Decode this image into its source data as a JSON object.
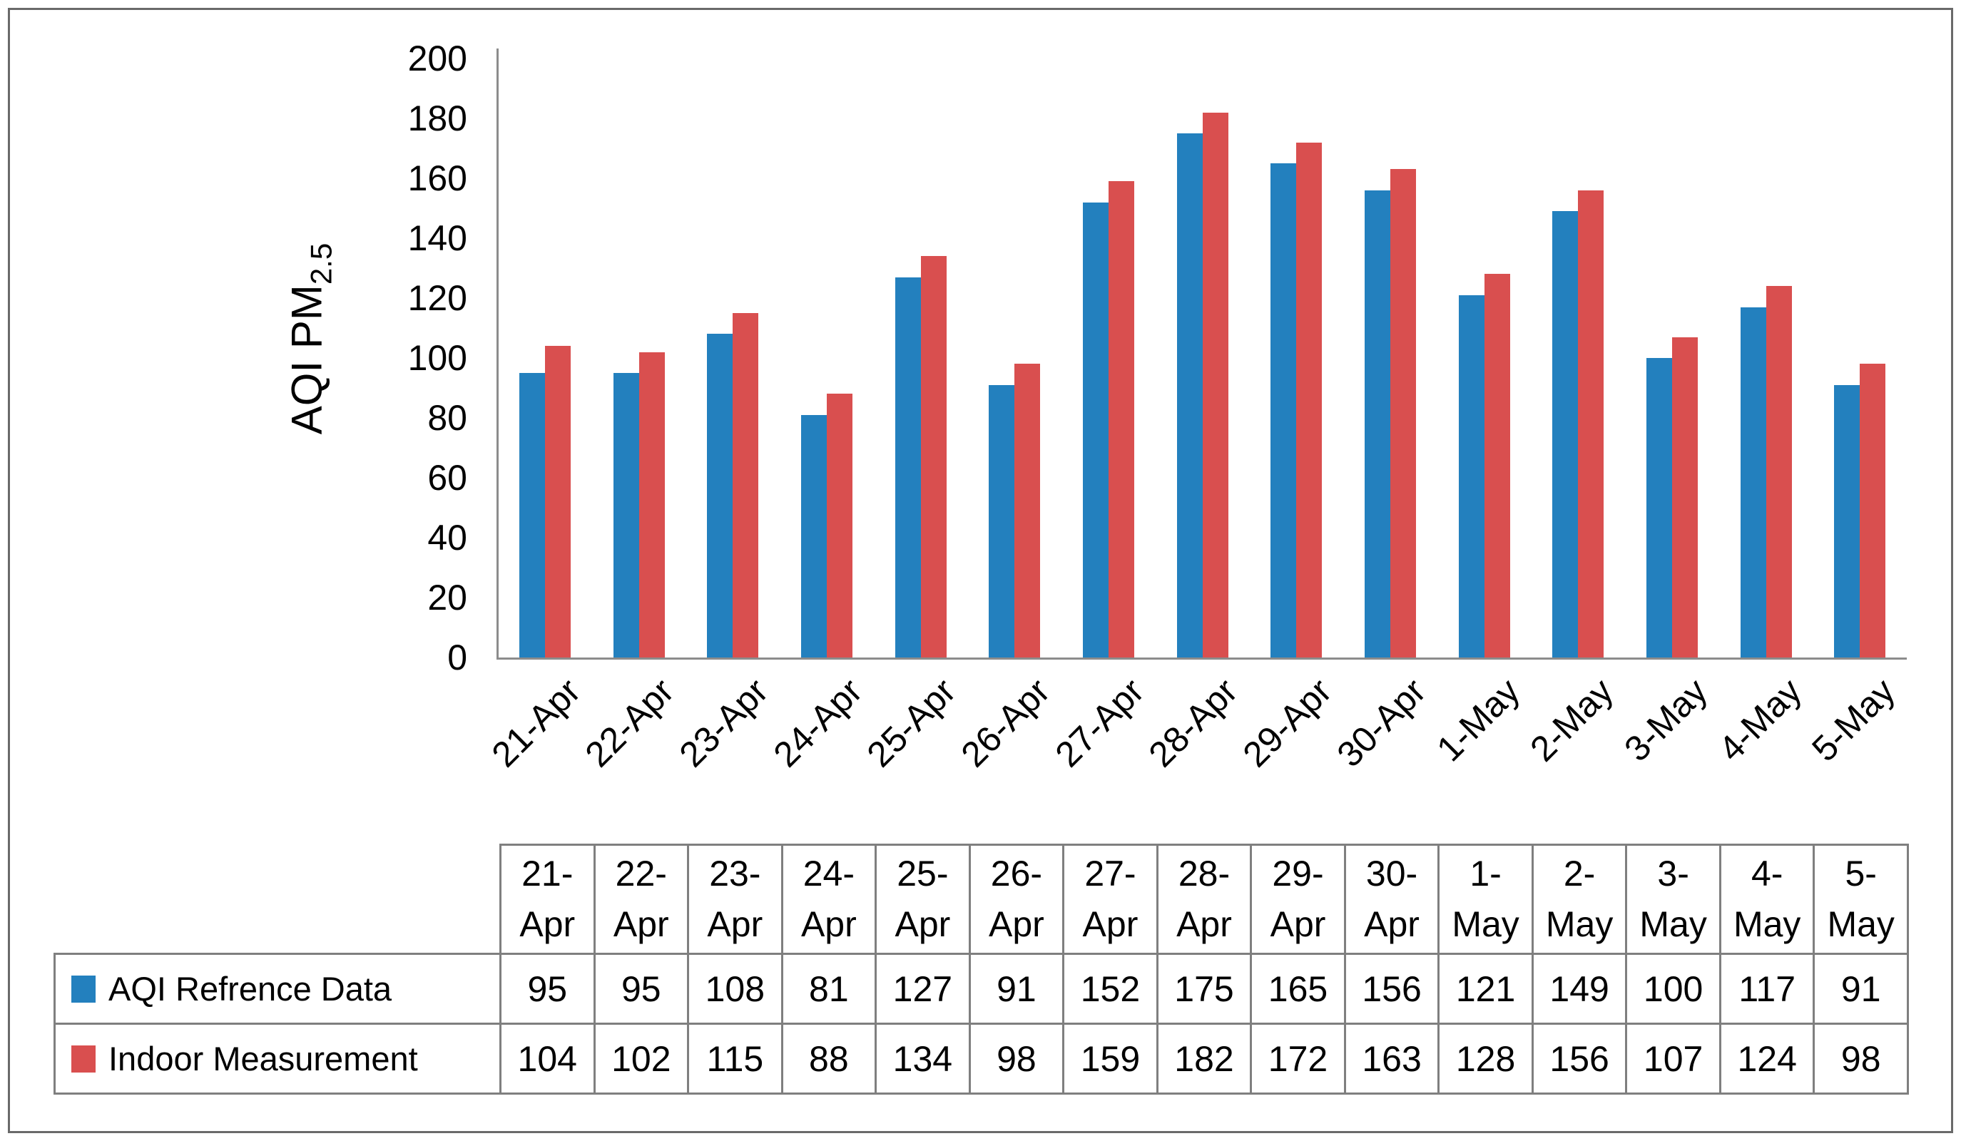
{
  "figure": {
    "background": "#ffffff",
    "border_color": "#6a6a6a"
  },
  "chart_data": {
    "type": "bar",
    "title": "",
    "categories": [
      "21-Apr",
      "22-Apr",
      "23-Apr",
      "24-Apr",
      "25-Apr",
      "26-Apr",
      "27-Apr",
      "28-Apr",
      "29-Apr",
      "30-Apr",
      "1-May",
      "2-May",
      "3-May",
      "4-May",
      "5-May"
    ],
    "series": [
      {
        "name": "AQI Refrence Data",
        "color": "#2380be",
        "values": [
          95,
          95,
          108,
          81,
          127,
          91,
          152,
          175,
          165,
          156,
          121,
          149,
          100,
          117,
          91
        ]
      },
      {
        "name": "Indoor Measurement",
        "color": "#d94f4f",
        "values": [
          104,
          102,
          115,
          88,
          134,
          98,
          159,
          182,
          172,
          163,
          128,
          156,
          107,
          124,
          98
        ]
      }
    ],
    "ylabel_main": "AQI PM",
    "ylabel_sub": "2.5",
    "xlabel": "",
    "ylim": [
      0,
      200
    ],
    "ytick_step": 20,
    "ytick_labels": [
      "0",
      "20",
      "40",
      "60",
      "80",
      "100",
      "120",
      "140",
      "160",
      "180",
      "200"
    ],
    "grid": false,
    "axis_color": "#8c8c8c",
    "legend_position": "table-left-column"
  },
  "table": {
    "border_color": "#7f7f7f",
    "note": "data table below chart; header shows each date split on two lines; first column holds legend swatch + series name"
  }
}
